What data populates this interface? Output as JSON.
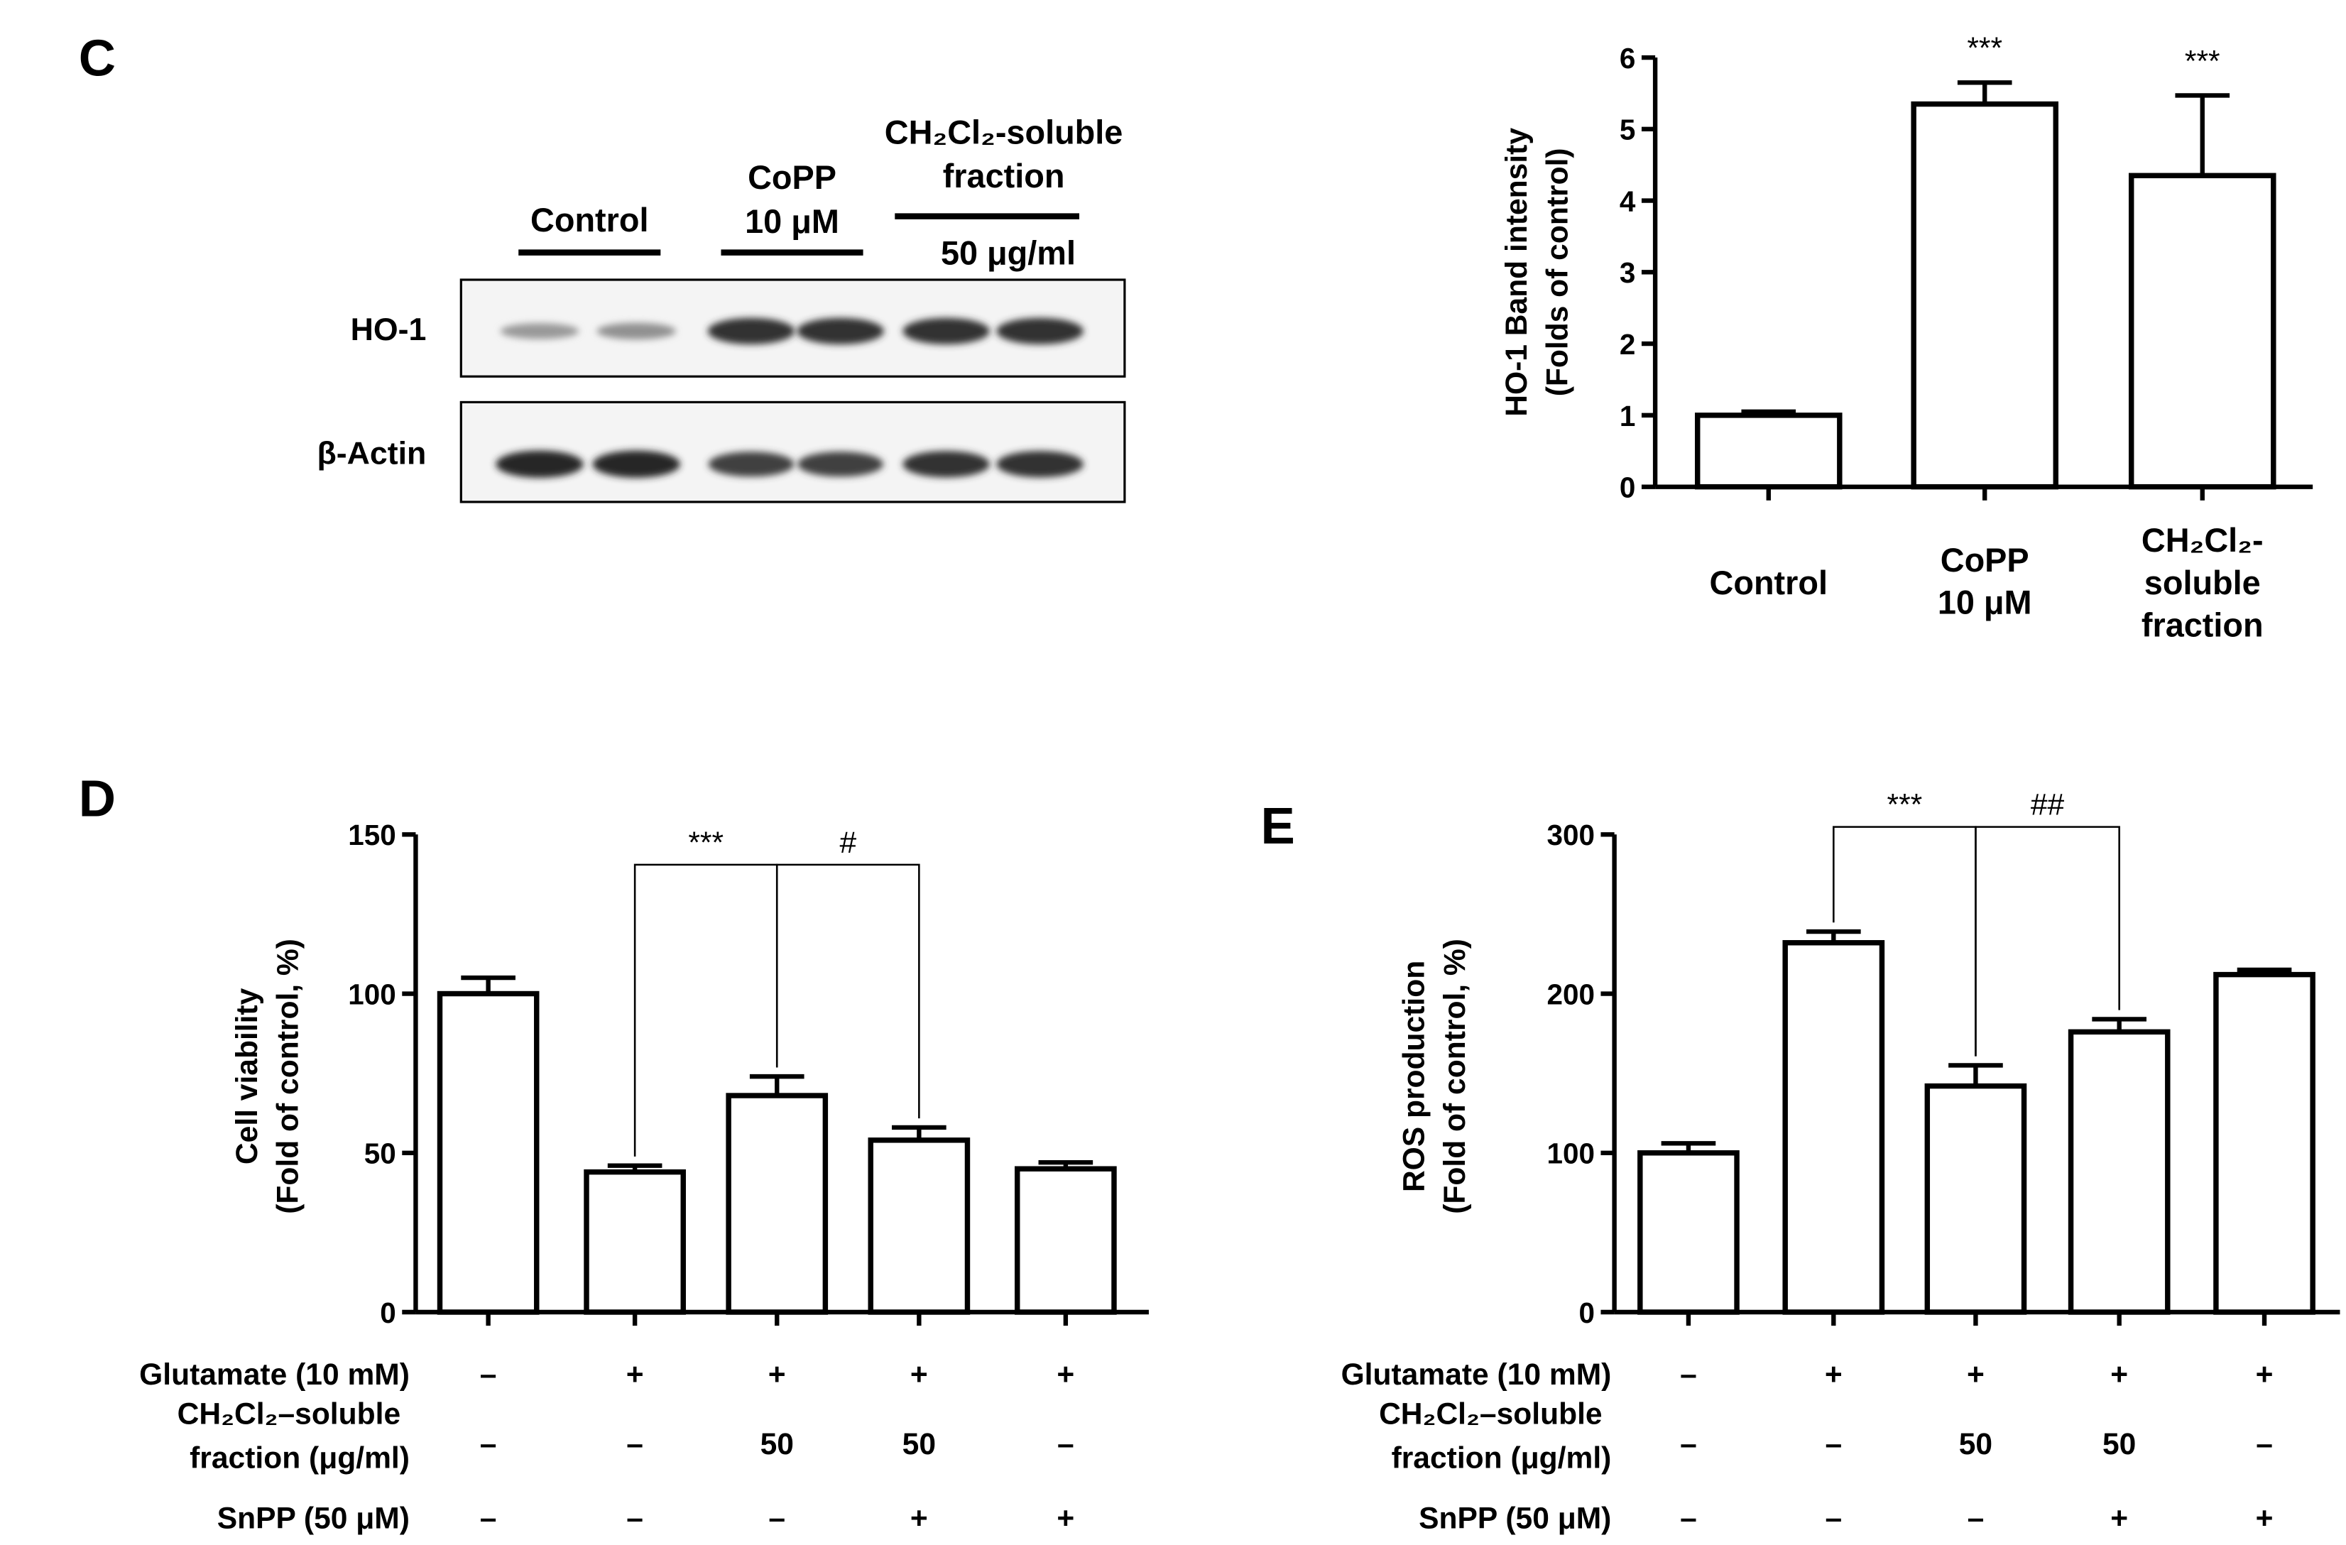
{
  "panels": {
    "c": "C",
    "d": "D",
    "e": "E"
  },
  "blot": {
    "lane_groups": [
      {
        "lines": [
          "Control"
        ]
      },
      {
        "lines": [
          "CoPP",
          "10 μM"
        ]
      },
      {
        "lines": [
          "CH₂Cl₂-soluble",
          "fraction",
          "50 μg/ml"
        ]
      }
    ],
    "rows": [
      {
        "label": "HO-1",
        "band_intensity": [
          0.25,
          0.3,
          0.95,
          0.95,
          0.95,
          0.95
        ]
      },
      {
        "label": "β-Actin",
        "band_intensity": [
          1.0,
          1.0,
          0.85,
          0.85,
          0.95,
          0.95
        ]
      }
    ]
  },
  "chart_data": [
    {
      "type": "bar",
      "panel": "C",
      "title": "",
      "ylabel": [
        "HO-1 Band intensity",
        "(Folds of control)"
      ],
      "categories": [
        [
          "Control"
        ],
        [
          "CoPP",
          "10 μM"
        ],
        [
          "CH₂Cl₂-",
          "soluble",
          "fraction"
        ]
      ],
      "values": [
        1.0,
        5.35,
        4.35
      ],
      "errors": [
        0.05,
        0.3,
        1.12
      ],
      "ylim": [
        0,
        6
      ],
      "yticks": [
        "0",
        "1",
        "2",
        "3",
        "4",
        "5",
        "6"
      ],
      "annotations": [
        "",
        "***",
        "***"
      ],
      "grid": false
    },
    {
      "type": "bar",
      "panel": "D",
      "title": "",
      "ylabel": [
        "Cell viability",
        "(Fold of control, %)"
      ],
      "values": [
        100,
        44,
        68,
        54,
        45
      ],
      "errors": [
        5,
        2,
        6,
        4,
        2
      ],
      "ylim": [
        0,
        150
      ],
      "yticks": [
        "0",
        "50",
        "100",
        "150"
      ],
      "brackets": [
        {
          "from": 1,
          "to": 2,
          "label": "***"
        },
        {
          "from": 2,
          "to": 3,
          "label": "#"
        }
      ],
      "conditions": [
        {
          "label": [
            "Glutamate (10 mM)"
          ],
          "values": [
            "–",
            "+",
            "+",
            "+",
            "+"
          ]
        },
        {
          "label": [
            "CH₂Cl₂–soluble",
            "fraction (μg/ml)"
          ],
          "values": [
            "–",
            "–",
            "50",
            "50",
            "–"
          ]
        },
        {
          "label": [
            "SnPP (50 μM)"
          ],
          "values": [
            "–",
            "–",
            "–",
            "+",
            "+"
          ]
        }
      ],
      "grid": false
    },
    {
      "type": "bar",
      "panel": "E",
      "title": "",
      "ylabel": [
        "ROS production",
        "(Fold of control, %)"
      ],
      "values": [
        100,
        232,
        142,
        176,
        212
      ],
      "errors": [
        6,
        7,
        13,
        8,
        3
      ],
      "ylim": [
        0,
        300
      ],
      "yticks": [
        "0",
        "100",
        "200",
        "300"
      ],
      "brackets": [
        {
          "from": 1,
          "to": 2,
          "label": "***"
        },
        {
          "from": 2,
          "to": 3,
          "label": "##"
        }
      ],
      "conditions": [
        {
          "label": [
            "Glutamate (10 mM)"
          ],
          "values": [
            "–",
            "+",
            "+",
            "+",
            "+"
          ]
        },
        {
          "label": [
            "CH₂Cl₂–soluble",
            "fraction (μg/ml)"
          ],
          "values": [
            "–",
            "–",
            "50",
            "50",
            "–"
          ]
        },
        {
          "label": [
            "SnPP (50 μM)"
          ],
          "values": [
            "–",
            "–",
            "–",
            "+",
            "+"
          ]
        }
      ],
      "grid": false
    }
  ]
}
